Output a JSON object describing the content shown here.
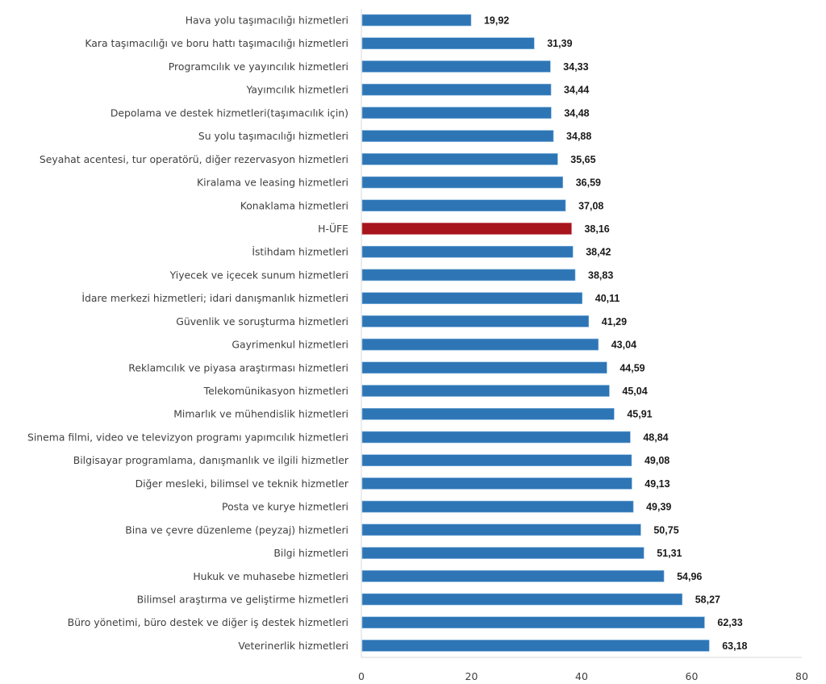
{
  "chart_data": {
    "type": "bar",
    "orientation": "horizontal",
    "title": "",
    "xlabel": "",
    "ylabel": "",
    "xlim": [
      0,
      80
    ],
    "xticks": [
      0,
      20,
      40,
      60,
      80
    ],
    "grid": false,
    "legend": "none",
    "decimal_separator": ",",
    "colors": {
      "default": "#2e75b6",
      "highlight": "#a8141c"
    },
    "highlight_category": "H-ÜFE",
    "categories": [
      "Hava yolu taşımacılığı hizmetleri",
      "Kara taşımacılığı ve boru hattı taşımacılığı hizmetleri",
      "Programcılık ve yayıncılık hizmetleri",
      "Yayımcılık hizmetleri",
      "Depolama ve destek hizmetleri(taşımacılık için)",
      "Su yolu taşımacılığı hizmetleri",
      "Seyahat acentesi, tur operatörü, diğer rezervasyon hizmetleri",
      "Kiralama ve leasing hizmetleri",
      "Konaklama hizmetleri",
      "H-ÜFE",
      "İstihdam hizmetleri",
      "Yiyecek ve içecek sunum hizmetleri",
      "İdare merkezi hizmetleri; idari danışmanlık hizmetleri",
      "Güvenlik ve soruşturma hizmetleri",
      "Gayrimenkul hizmetleri",
      "Reklamcılık ve piyasa araştırması hizmetleri",
      "Telekomünikasyon hizmetleri",
      "Mimarlık ve mühendislik hizmetleri",
      "Sinema filmi, video ve televizyon programı yapımcılık hizmetleri",
      "Bilgisayar programlama, danışmanlık ve ilgili hizmetler",
      "Diğer mesleki, bilimsel ve teknik hizmetler",
      "Posta ve kurye hizmetleri",
      "Bina ve çevre düzenleme (peyzaj) hizmetleri",
      "Bilgi hizmetleri",
      "Hukuk ve muhasebe hizmetleri",
      "Bilimsel araştırma ve geliştirme hizmetleri",
      "Büro yönetimi, büro destek ve diğer iş destek hizmetleri",
      "Veterinerlik hizmetleri"
    ],
    "values": [
      19.92,
      31.39,
      34.33,
      34.44,
      34.48,
      34.88,
      35.65,
      36.59,
      37.08,
      38.16,
      38.42,
      38.83,
      40.11,
      41.29,
      43.04,
      44.59,
      45.04,
      45.91,
      48.84,
      49.08,
      49.13,
      49.39,
      50.75,
      51.31,
      54.96,
      58.27,
      62.33,
      63.18
    ],
    "value_labels": [
      "19,92",
      "31,39",
      "34,33",
      "34,44",
      "34,48",
      "34,88",
      "35,65",
      "36,59",
      "37,08",
      "38,16",
      "38,42",
      "38,83",
      "40,11",
      "41,29",
      "43,04",
      "44,59",
      "45,04",
      "45,91",
      "48,84",
      "49,08",
      "49,13",
      "49,39",
      "50,75",
      "51,31",
      "54,96",
      "58,27",
      "62,33",
      "63,18"
    ]
  }
}
